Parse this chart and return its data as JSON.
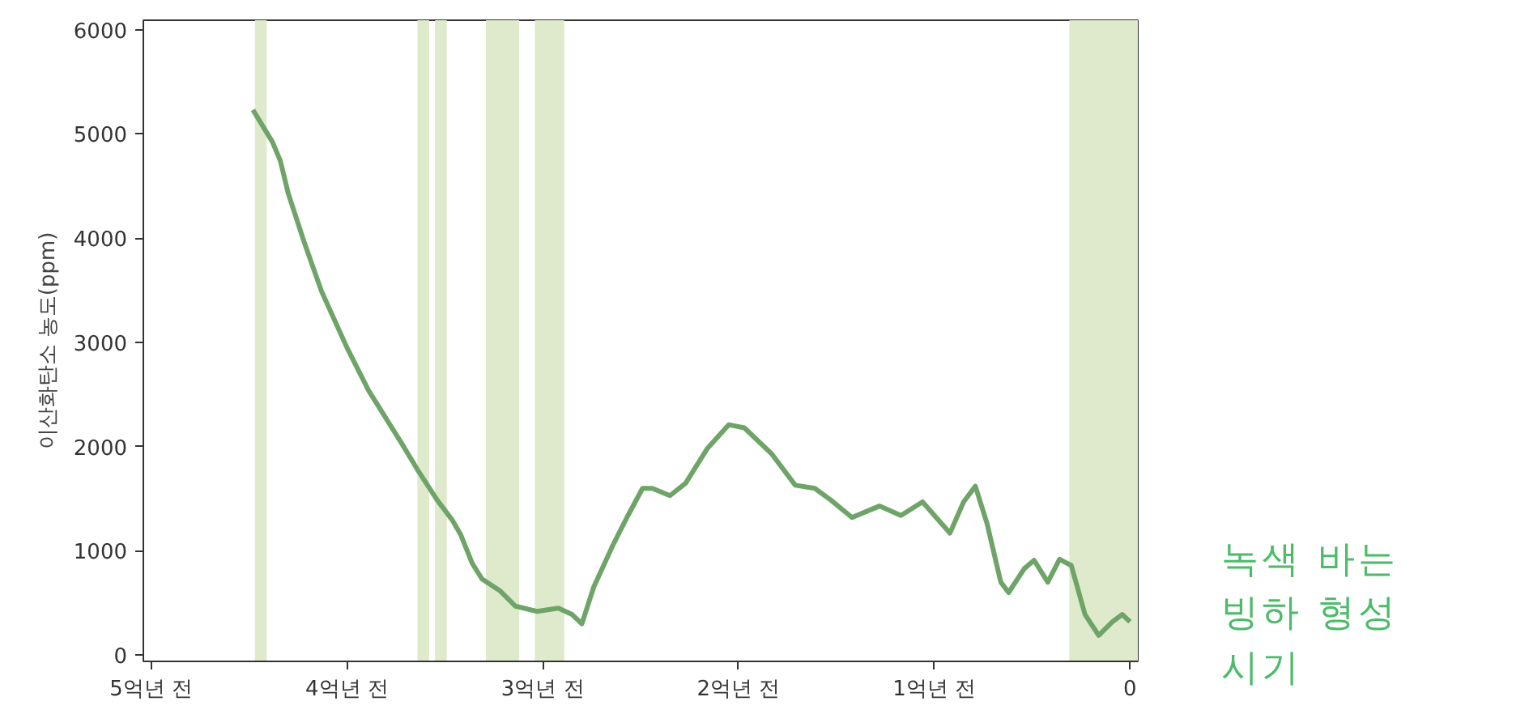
{
  "chart_data": {
    "type": "line",
    "ylabel": "이산화탄소 농도(ppm)",
    "xlim": [
      5.04,
      -0.04
    ],
    "ylim": [
      -60,
      6090
    ],
    "xticks": [
      {
        "value": 5,
        "label": "5억년 전"
      },
      {
        "value": 4,
        "label": "4억년 전"
      },
      {
        "value": 3,
        "label": "3억년 전"
      },
      {
        "value": 2,
        "label": "2억년 전"
      },
      {
        "value": 1,
        "label": "1억년 전"
      },
      0
    ],
    "yticks": [
      0,
      1000,
      2000,
      3000,
      4000,
      5000,
      6000
    ],
    "grid": false,
    "marker": "none",
    "line_style": "solid",
    "series": [
      {
        "color": "#6fa468",
        "x": [
          4.48,
          4.38,
          4.34,
          4.3,
          4.22,
          4.13,
          4.0,
          3.89,
          3.72,
          3.64,
          3.54,
          3.46,
          3.42,
          3.36,
          3.31,
          3.22,
          3.14,
          3.03,
          2.92,
          2.85,
          2.8,
          2.74,
          2.64,
          2.57,
          2.49,
          2.44,
          2.35,
          2.27,
          2.16,
          2.05,
          1.97,
          1.83,
          1.71,
          1.61,
          1.53,
          1.42,
          1.28,
          1.17,
          1.06,
          0.99,
          0.92,
          0.85,
          0.79,
          0.73,
          0.66,
          0.62,
          0.54,
          0.49,
          0.42,
          0.36,
          0.3,
          0.23,
          0.16,
          0.09,
          0.04,
          0
        ],
        "values": [
          5230,
          4920,
          4740,
          4430,
          3970,
          3490,
          2950,
          2540,
          2030,
          1780,
          1490,
          1290,
          1160,
          880,
          730,
          620,
          470,
          420,
          450,
          390,
          300,
          650,
          1060,
          1320,
          1600,
          1600,
          1530,
          1650,
          1980,
          2210,
          2180,
          1930,
          1630,
          1600,
          1490,
          1320,
          1430,
          1340,
          1470,
          1320,
          1170,
          1470,
          1620,
          1260,
          700,
          600,
          830,
          910,
          700,
          920,
          860,
          390,
          190,
          320,
          390,
          320
        ]
      }
    ],
    "bands": [
      {
        "axis": "x",
        "from": 4.47,
        "to": 4.41,
        "color": "#dfe9cc"
      },
      {
        "axis": "x",
        "from": 3.64,
        "to": 3.58,
        "color": "#dfe9cc"
      },
      {
        "axis": "x",
        "from": 3.55,
        "to": 3.49,
        "color": "#dfe9cc"
      },
      {
        "axis": "x",
        "from": 3.29,
        "to": 3.12,
        "color": "#dfe9cc"
      },
      {
        "axis": "x",
        "from": 3.04,
        "to": 2.89,
        "color": "#dfe9cc"
      },
      {
        "axis": "x",
        "from": 0.31,
        "to": -0.04,
        "color": "#dfe9cc"
      }
    ],
    "annotations": [
      "녹색 바는 빙하 형성 시기"
    ]
  }
}
